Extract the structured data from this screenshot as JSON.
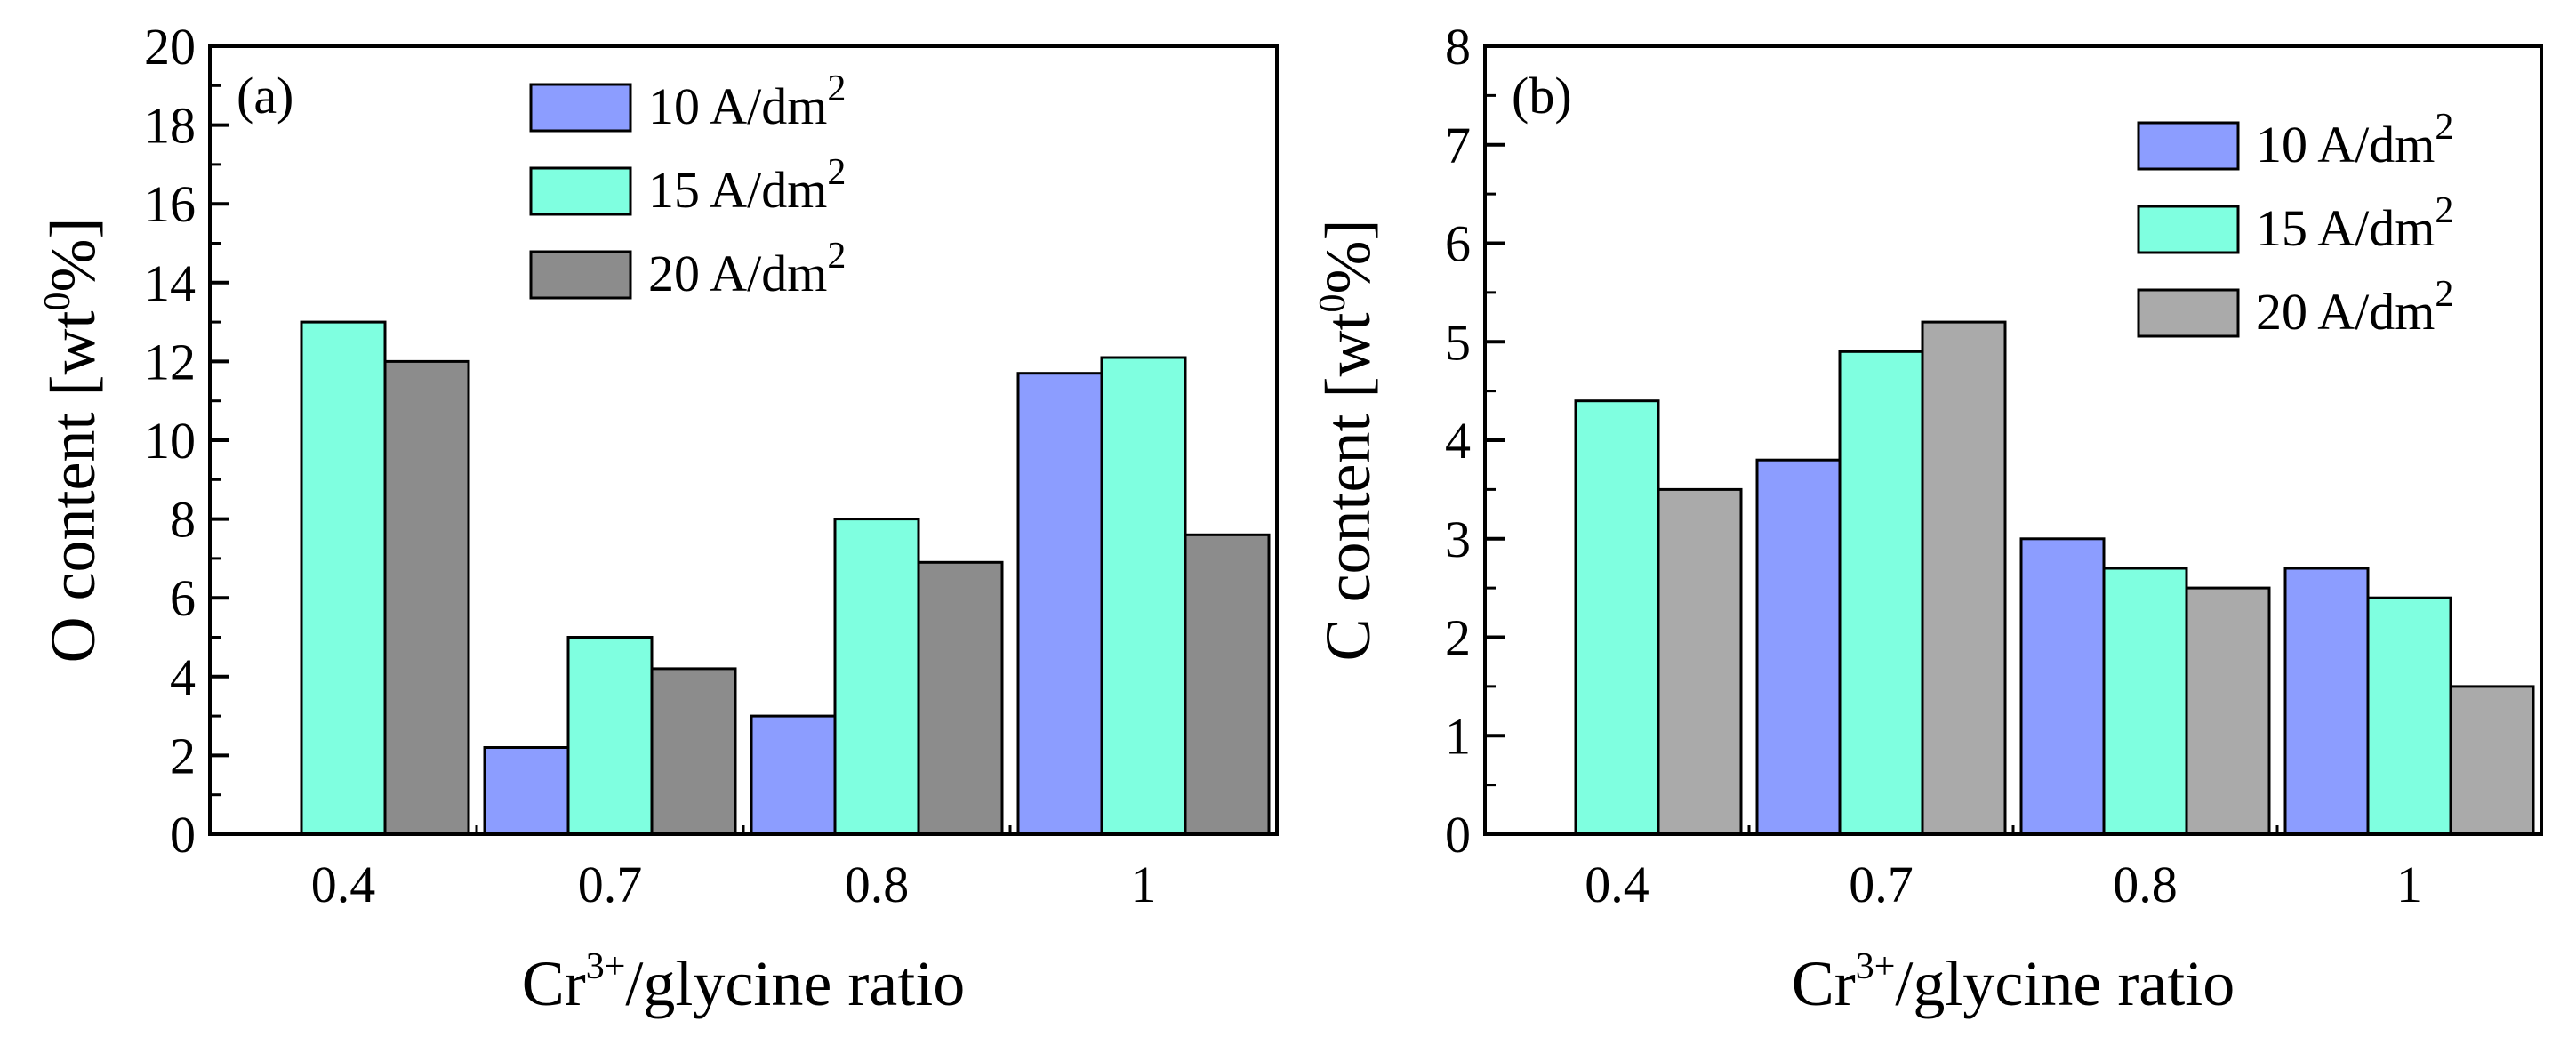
{
  "chart_data": [
    {
      "panel_label": "(a)",
      "type": "bar",
      "categories": [
        "0.4",
        "0.7",
        "0.8",
        "1"
      ],
      "series": [
        {
          "name": "10 A/dm2",
          "label_base": "10 A/dm",
          "label_sup": "2",
          "color": "#8c9dff",
          "values": [
            0,
            2.2,
            3.0,
            11.7
          ]
        },
        {
          "name": "15 A/dm2",
          "label_base": "15 A/dm",
          "label_sup": "2",
          "color": "#7fffe0",
          "values": [
            13.0,
            5.0,
            8.0,
            12.1
          ]
        },
        {
          "name": "20 A/dm2",
          "label_base": "20 A/dm",
          "label_sup": "2",
          "color": "#8c8c8c",
          "values": [
            12.0,
            4.2,
            6.9,
            7.6
          ]
        }
      ],
      "ylim": [
        0,
        20
      ],
      "yticks": [
        0,
        2,
        4,
        6,
        8,
        10,
        12,
        14,
        16,
        18,
        20
      ],
      "ylabel": "O content [wt%]",
      "ylabel_base": "O content [wt",
      "ylabel_sup": "0",
      "ylabel_tail": "%]",
      "xlabel": "Cr3+/glycine ratio",
      "xlabel_base": "Cr",
      "xlabel_sup": "3+",
      "xlabel_tail": "/glycine ratio",
      "legend_position": "top-center"
    },
    {
      "panel_label": "(b)",
      "type": "bar",
      "categories": [
        "0.4",
        "0.7",
        "0.8",
        "1"
      ],
      "series": [
        {
          "name": "10 A/dm2",
          "label_base": "10 A/dm",
          "label_sup": "2",
          "color": "#8c9dff",
          "values": [
            0,
            3.8,
            3.0,
            2.7
          ]
        },
        {
          "name": "15 A/dm2",
          "label_base": "15 A/dm",
          "label_sup": "2",
          "color": "#7fffe0",
          "values": [
            4.4,
            4.9,
            2.7,
            2.4
          ]
        },
        {
          "name": "20 A/dm2",
          "label_base": "20 A/dm",
          "label_sup": "2",
          "color": "#aaaaaa",
          "values": [
            3.5,
            5.2,
            2.5,
            1.5
          ]
        }
      ],
      "ylim": [
        0,
        8
      ],
      "yticks": [
        0,
        1,
        2,
        3,
        4,
        5,
        6,
        7,
        8
      ],
      "ylabel": "C content [wt%]",
      "ylabel_base": "C content [wt",
      "ylabel_sup": "0",
      "ylabel_tail": "%]",
      "xlabel": "Cr3+/glycine ratio",
      "xlabel_base": "Cr",
      "xlabel_sup": "3+",
      "xlabel_tail": "/glycine ratio",
      "legend_position": "top-right"
    }
  ]
}
